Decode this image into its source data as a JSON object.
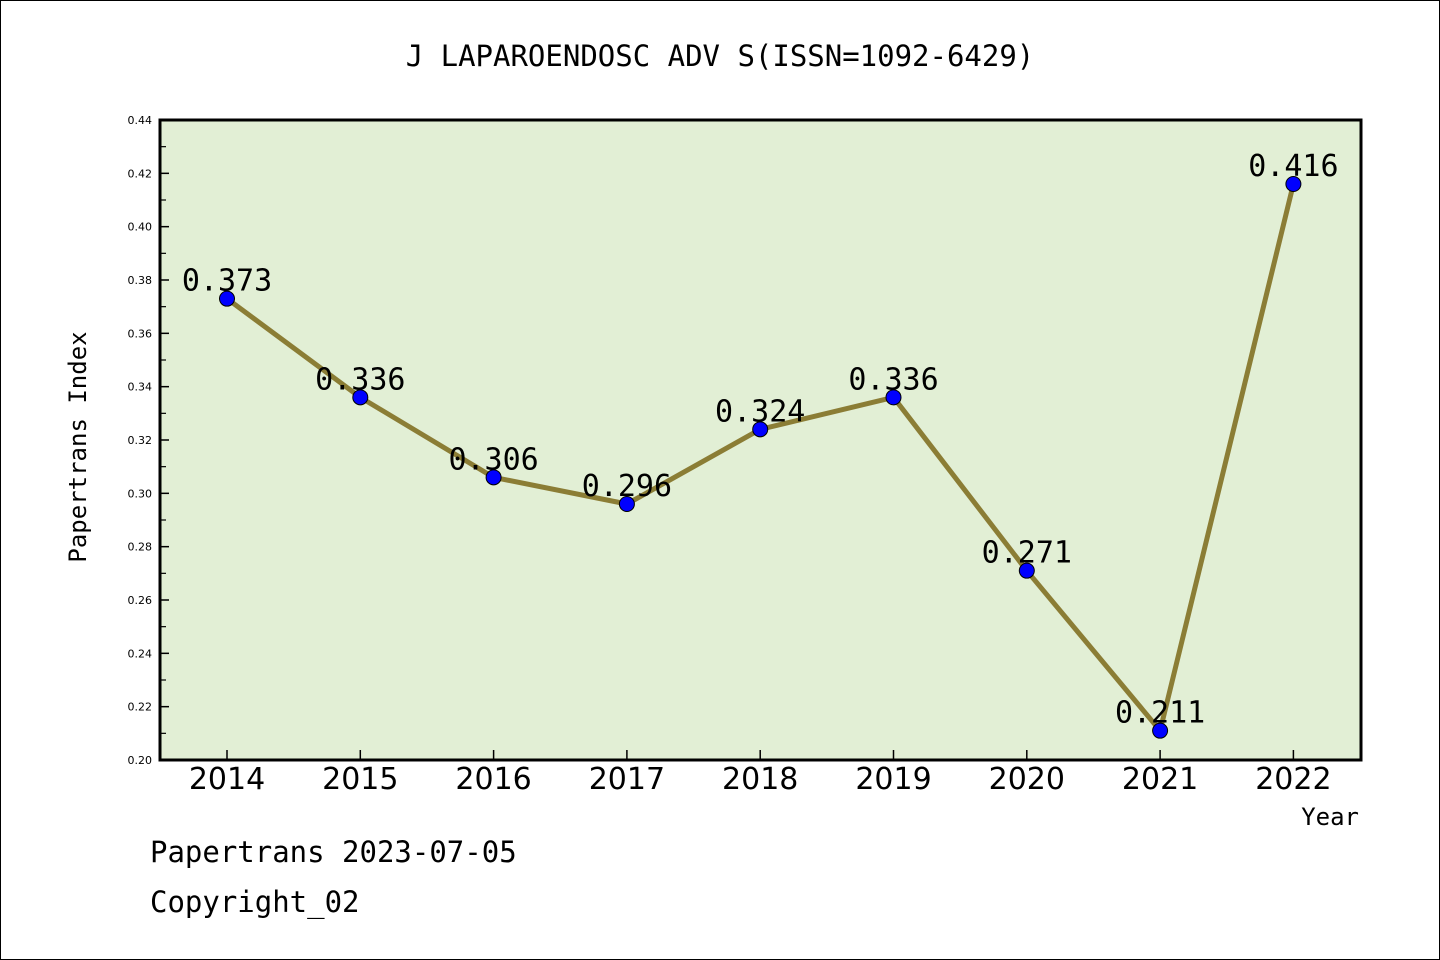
{
  "chart_data": {
    "type": "line",
    "title": "J LAPAROENDOSC ADV S(ISSN=1092-6429)",
    "xlabel": "Year",
    "ylabel": "Papertrans Index",
    "x": [
      "2014",
      "2015",
      "2016",
      "2017",
      "2018",
      "2019",
      "2020",
      "2021",
      "2022"
    ],
    "values": [
      0.373,
      0.336,
      0.306,
      0.296,
      0.324,
      0.336,
      0.271,
      0.211,
      0.416
    ],
    "data_labels": [
      "0.373",
      "0.336",
      "0.306",
      "0.296",
      "0.324",
      "0.336",
      "0.271",
      "0.211",
      "0.416"
    ],
    "ylim": [
      0.2,
      0.44
    ],
    "yticks": [
      "0.20",
      "0.22",
      "0.24",
      "0.26",
      "0.28",
      "0.30",
      "0.32",
      "0.34",
      "0.36",
      "0.38",
      "0.40",
      "0.42",
      "0.44"
    ],
    "grid": false,
    "legend": "none",
    "colors": {
      "plot_background": "#e2efd5",
      "line": "#8b7d35",
      "marker": "#0000ff"
    }
  },
  "footer": {
    "source": "Papertrans 2023-07-05",
    "copyright": "Copyright_02"
  }
}
